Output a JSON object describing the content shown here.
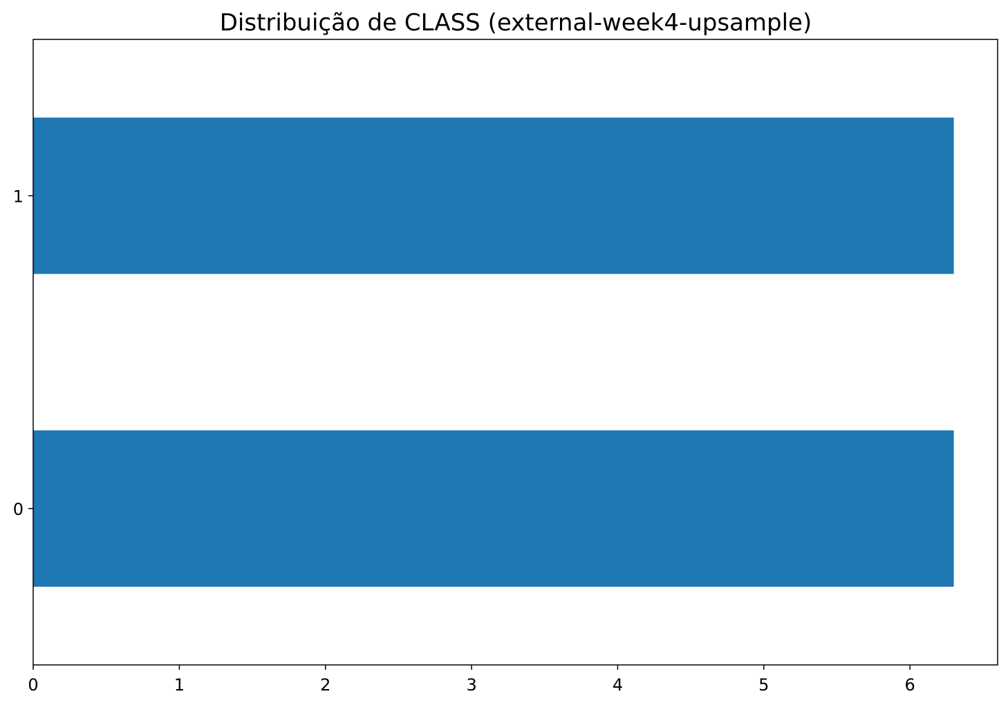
{
  "chart_data": {
    "type": "bar",
    "orientation": "horizontal",
    "title": "Distribuição de CLASS (external-week4-upsample)",
    "xlabel": "",
    "ylabel": "",
    "categories": [
      "0",
      "1"
    ],
    "values": [
      6.3,
      6.3
    ],
    "xlim": [
      0,
      6.6
    ],
    "xticks": [
      0,
      1,
      2,
      3,
      4,
      5,
      6
    ],
    "grid": false,
    "legend": "none",
    "bar_color": "#1f77b4"
  }
}
